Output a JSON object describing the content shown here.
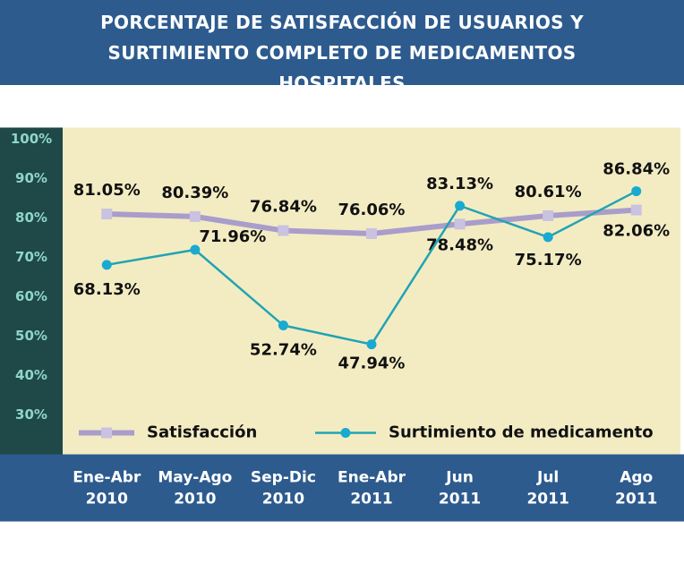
{
  "chart_data": {
    "type": "line",
    "title": "PORCENTAJE DE SATISFACCIÓN DE USUARIOS Y SURTIMIENTO COMPLETO DE MEDICAMENTOS HOSPITALES",
    "categories": [
      "Ene-Abr 2010",
      "May-Ago 2010",
      "Sep-Dic 2010",
      "Ene-Abr 2011",
      "Jun 2011",
      "Jul 2011",
      "Ago 2011"
    ],
    "series": [
      {
        "name": "Satisfacción",
        "color": "#a99dcb",
        "marker": "square",
        "values": [
          81.05,
          80.39,
          76.84,
          76.06,
          78.48,
          80.61,
          82.06
        ],
        "value_labels": [
          "81.05%",
          "80.39%",
          "76.84%",
          "76.06%",
          "78.48%",
          "80.61%",
          "82.06%"
        ]
      },
      {
        "name": "Surtimiento de medicamento",
        "color": "#22a3b3",
        "marker": "circle",
        "values": [
          68.13,
          71.96,
          52.74,
          47.94,
          83.13,
          75.17,
          86.84
        ],
        "value_labels": [
          "68.13%",
          "71.96%",
          "52.74%",
          "47.94%",
          "83.13%",
          "75.17%",
          "86.84%"
        ]
      }
    ],
    "ylim": [
      20,
      103
    ],
    "yticks": [
      {
        "value": 30,
        "label": "30%"
      },
      {
        "value": 40,
        "label": "40%"
      },
      {
        "value": 50,
        "label": "50%"
      },
      {
        "value": 60,
        "label": "60%"
      },
      {
        "value": 70,
        "label": "70%"
      },
      {
        "value": 80,
        "label": "80%"
      },
      {
        "value": 90,
        "label": "90%"
      },
      {
        "value": 100,
        "label": "100%"
      }
    ],
    "grid": false,
    "legend": "bottom"
  }
}
